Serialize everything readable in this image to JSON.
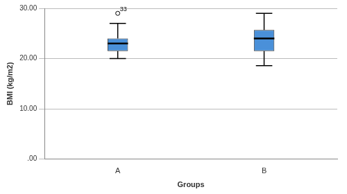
{
  "chart_data": {
    "type": "box",
    "x_label": "Groups",
    "y_label": "BMI (kg/m2)",
    "categories": [
      "A",
      "B"
    ],
    "boxes": [
      {
        "min": 20,
        "q1": 21.5,
        "median": 23,
        "q3": 24,
        "max": 27,
        "outliers": [
          {
            "value": 29,
            "label": "33"
          }
        ]
      },
      {
        "min": 18.6,
        "q1": 21.5,
        "median": 24,
        "q3": 25.7,
        "max": 29,
        "outliers": []
      }
    ],
    "color": "#4a90d9",
    "ylim": [
      0,
      30
    ],
    "yticks": [
      {
        "value": 0,
        "label": ".00"
      },
      {
        "value": 10,
        "label": "10.00"
      },
      {
        "value": 20,
        "label": "20.00"
      },
      {
        "value": 30,
        "label": "30.00"
      }
    ],
    "grid": true
  }
}
